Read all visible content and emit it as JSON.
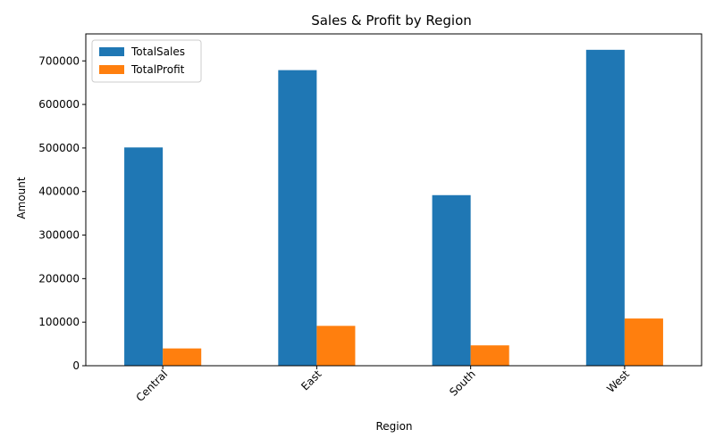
{
  "chart_data": {
    "type": "bar",
    "title": "Sales & Profit by Region",
    "xlabel": "Region",
    "ylabel": "Amount",
    "categories": [
      "Central",
      "East",
      "South",
      "West"
    ],
    "series": [
      {
        "name": "TotalSales",
        "values": [
          501240,
          678781,
          391722,
          725458
        ],
        "color": "#1f77b4"
      },
      {
        "name": "TotalProfit",
        "values": [
          39706,
          91523,
          46749,
          108418
        ],
        "color": "#ff7f0e"
      }
    ],
    "ylim": [
      0,
      762000
    ],
    "yticks": [
      0,
      100000,
      200000,
      300000,
      400000,
      500000,
      600000,
      700000
    ],
    "ytick_labels": [
      "0",
      "100000",
      "200000",
      "300000",
      "400000",
      "500000",
      "600000",
      "700000"
    ],
    "grid": false,
    "legend": "top-left",
    "xtick_rotation": 45
  }
}
